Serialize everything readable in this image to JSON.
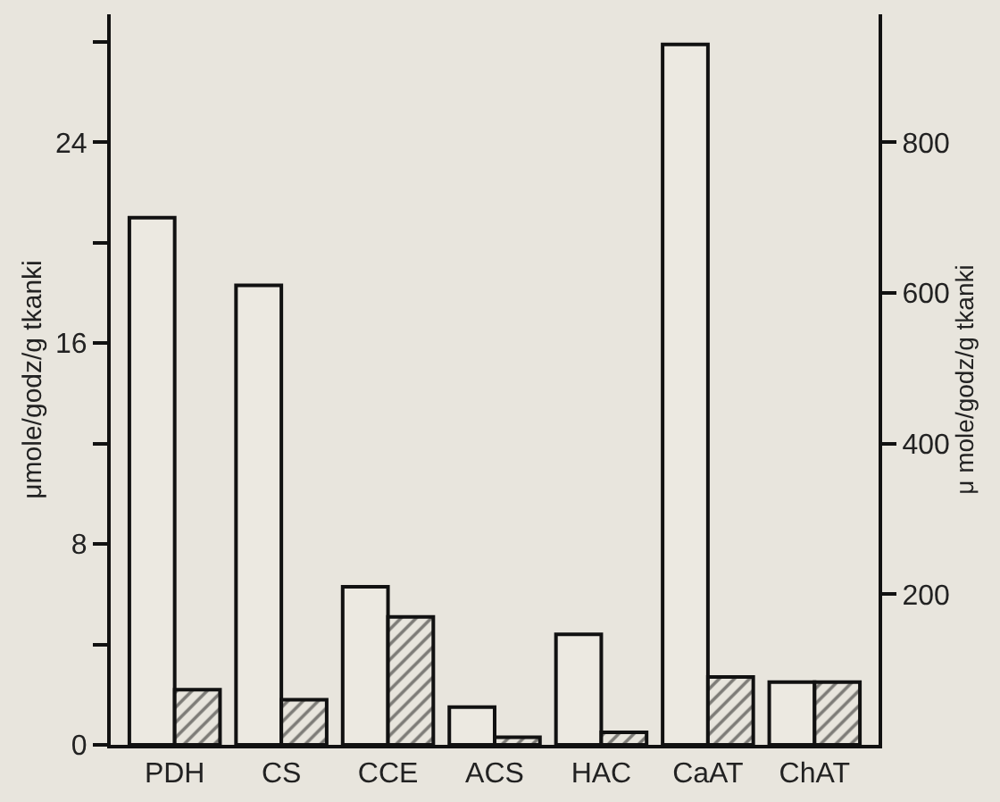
{
  "chart_data": {
    "type": "bar",
    "ylabel": "μmole/godz/g tkanki",
    "y2label": "μ mole/godz/g tkanki",
    "categories": [
      "PDH",
      "CS",
      "CCE",
      "ACS",
      "HAC",
      "CaAT",
      "ChAT"
    ],
    "series": [
      {
        "color": "#ece9e1",
        "values": [
          21.0,
          18.3,
          6.3,
          1.5,
          4.4,
          27.9,
          2.5
        ]
      },
      {
        "color": "#111111",
        "values": [
          2.2,
          1.8,
          5.1,
          0.3,
          0.5,
          2.7,
          2.5
        ]
      }
    ],
    "ylim": [
      0,
      29.1
    ],
    "yticks": [
      0,
      {
        "value": 4,
        "label": null
      },
      8,
      {
        "value": 12,
        "label": null
      },
      16,
      {
        "value": 20,
        "label": null
      },
      24,
      {
        "value": 28,
        "label": null
      }
    ],
    "y2lim": [
      0,
      970
    ],
    "y2ticks": [
      200,
      400,
      600,
      800
    ],
    "grid": false,
    "legend": false
  }
}
